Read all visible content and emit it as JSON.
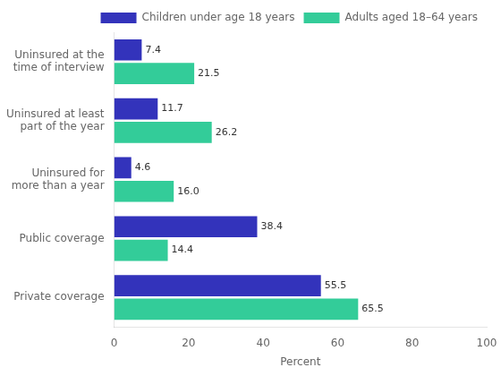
{
  "chart_data": {
    "type": "bar",
    "orientation": "horizontal",
    "categories": [
      "Private coverage",
      "Public coverage",
      "Uninsured for\nmore than a year",
      "Uninsured at least\npart of the year",
      "Uninsured at the\ntime of interview"
    ],
    "series": [
      {
        "name": "Children under age 18 years",
        "color": "#3333bb",
        "values": [
          55.5,
          38.4,
          4.6,
          11.7,
          7.4
        ],
        "value_labels": [
          "55.5",
          "38.4",
          "4.6",
          "11.7",
          "7.4"
        ]
      },
      {
        "name": "Adults aged 18–64 years",
        "color": "#33cc99",
        "values": [
          65.5,
          14.4,
          16.0,
          26.2,
          21.5
        ],
        "value_labels": [
          "65.5",
          "14.4",
          "16.0",
          "26.2",
          "21.5"
        ]
      }
    ],
    "xlabel": "Percent",
    "xlim": [
      0,
      100
    ],
    "xticks": [
      0,
      20,
      40,
      60,
      80,
      100
    ],
    "grid": false,
    "legend": "upper right",
    "data_labels": true
  }
}
